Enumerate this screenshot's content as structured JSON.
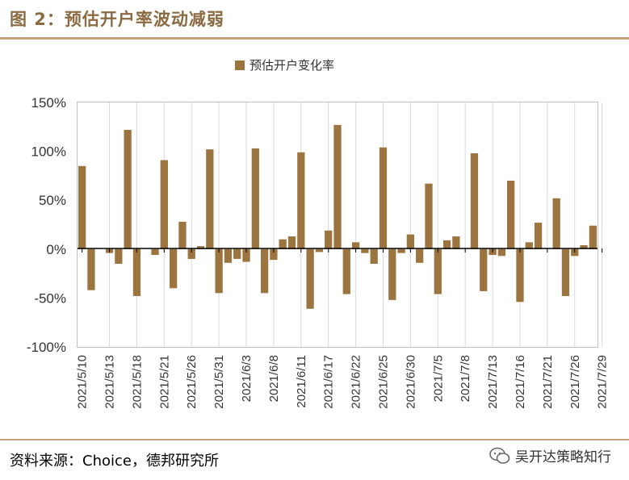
{
  "figure": {
    "title": "图 2：预估开户率波动减弱",
    "source": "资料来源：Choice，德邦研究所",
    "watermark": "吴开达策略知行",
    "accent_color": "#9B7440",
    "rule_color": "#C5A27A",
    "title_color": "#8B6A42"
  },
  "chart_data": {
    "type": "bar",
    "title": "",
    "xlabel": "",
    "ylabel": "",
    "legend": "预估开户变化率",
    "legend_position": "top-center",
    "ylim": [
      -100,
      150
    ],
    "yticks": [
      150,
      100,
      50,
      0,
      -50,
      -100
    ],
    "ytick_labels": [
      "150%",
      "100%",
      "50%",
      "0%",
      "-50%",
      "-100%"
    ],
    "grid": "vertical",
    "tick_labels": [
      "2021/5/10",
      "2021/5/13",
      "2021/5/18",
      "2021/5/21",
      "2021/5/26",
      "2021/5/31",
      "2021/6/3",
      "2021/6/8",
      "2021/6/11",
      "2021/6/17",
      "2021/6/22",
      "2021/6/25",
      "2021/6/30",
      "2021/7/5",
      "2021/7/8",
      "2021/7/13",
      "2021/7/16",
      "2021/7/21",
      "2021/7/26",
      "2021/7/29"
    ],
    "series": [
      {
        "name": "预估开户变化率",
        "values": [
          85,
          -42,
          0,
          -4,
          -15,
          122,
          -48,
          0,
          -6,
          91,
          -40,
          28,
          -10,
          3,
          102,
          -45,
          -14,
          -10,
          -13,
          103,
          -45,
          -11,
          10,
          13,
          99,
          -61,
          -3,
          19,
          127,
          -46,
          7,
          -4,
          -15,
          104,
          -52,
          -4,
          15,
          -14,
          67,
          -46,
          9,
          13,
          0,
          98,
          -43,
          -6,
          -7,
          70,
          -54,
          7,
          27,
          0,
          52,
          -48,
          -7,
          4,
          24
        ]
      }
    ]
  }
}
